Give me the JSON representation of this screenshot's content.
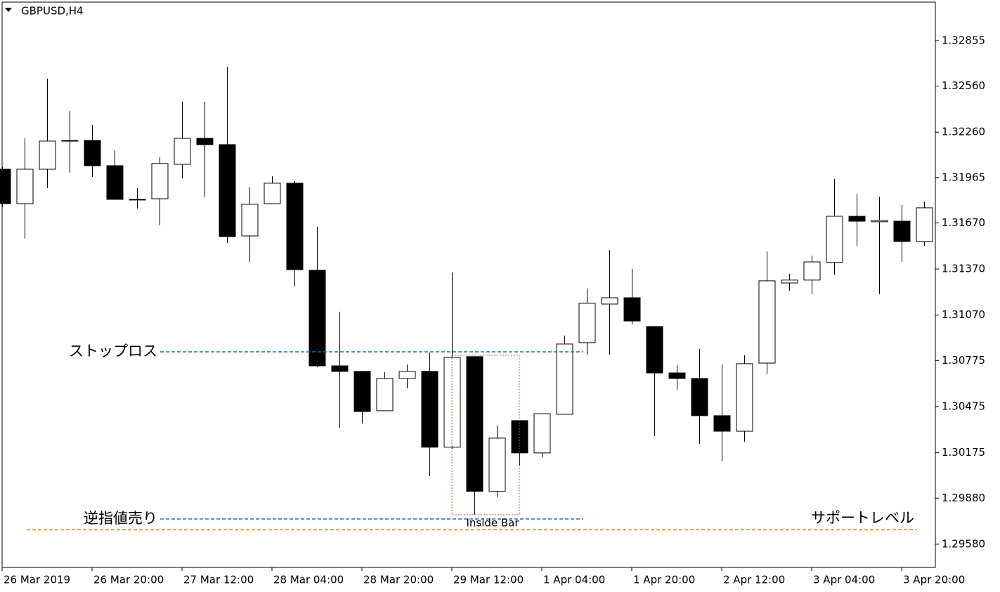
{
  "chart_data": {
    "type": "candlestick",
    "title": "GBPUSD,H4",
    "categories": [
      "26 Mar 2019",
      null,
      null,
      null,
      "26 Mar 20:00",
      null,
      null,
      null,
      "27 Mar 12:00",
      null,
      null,
      null,
      "28 Mar 04:00",
      null,
      null,
      null,
      "28 Mar 20:00",
      null,
      null,
      null,
      "29 Mar 12:00",
      null,
      null,
      null,
      "1 Apr 04:00",
      null,
      null,
      null,
      "1 Apr 20:00",
      null,
      null,
      null,
      "2 Apr 12:00",
      null,
      null,
      null,
      "3 Apr 04:00",
      null,
      null,
      null,
      "3 Apr 20:00",
      null
    ],
    "open": [
      1.32019,
      1.31795,
      1.32019,
      1.32206,
      1.32206,
      1.32042,
      1.31823,
      1.31827,
      1.32051,
      1.3222,
      1.32179,
      1.31585,
      1.31795,
      1.31928,
      1.31362,
      1.3074,
      1.30704,
      1.30448,
      1.30658,
      1.30704,
      1.30211,
      1.308,
      1.29924,
      1.30384,
      1.30174,
      1.30425,
      1.30891,
      1.31142,
      1.31183,
      1.30996,
      1.30694,
      1.30658,
      1.30416,
      1.30315,
      1.30758,
      1.31279,
      1.31298,
      1.31412,
      1.31713,
      1.31677,
      1.31681,
      1.31549
    ],
    "high": [
      1.32033,
      1.3222,
      1.32608,
      1.32398,
      1.32307,
      1.32142,
      1.31896,
      1.32097,
      1.32458,
      1.32458,
      1.32686,
      1.31901,
      1.31974,
      1.31942,
      1.31645,
      1.31092,
      1.30704,
      1.307,
      1.30749,
      1.30827,
      1.31348,
      1.308,
      1.30352,
      1.30384,
      1.30429,
      1.30937,
      1.31243,
      1.31494,
      1.31371,
      1.30996,
      1.30744,
      1.3085,
      1.30749,
      1.30809,
      1.31485,
      1.31339,
      1.31457,
      1.31956,
      1.31859,
      1.31841,
      1.31787,
      1.31809
    ],
    "low": [
      1.31772,
      1.31567,
      1.31896,
      1.31997,
      1.31969,
      1.31823,
      1.31763,
      1.31654,
      1.3196,
      1.31841,
      1.3154,
      1.31416,
      1.31795,
      1.31256,
      1.30731,
      1.30338,
      1.30365,
      1.30448,
      1.30594,
      1.30023,
      1.30198,
      1.29772,
      1.29887,
      1.30091,
      1.30146,
      1.30425,
      1.30813,
      1.30813,
      1.3101,
      1.30283,
      1.30585,
      1.30233,
      1.30119,
      1.30247,
      1.30687,
      1.31229,
      1.31206,
      1.31334,
      1.31521,
      1.31206,
      1.31416,
      1.31521
    ],
    "close": [
      1.31795,
      1.32019,
      1.32202,
      1.32202,
      1.32042,
      1.31823,
      1.31823,
      1.32056,
      1.3222,
      1.32179,
      1.31581,
      1.31791,
      1.31928,
      1.31366,
      1.3074,
      1.30704,
      1.30443,
      1.30658,
      1.30704,
      1.30211,
      1.30795,
      1.29924,
      1.3027,
      1.30174,
      1.30429,
      1.30882,
      1.31147,
      1.31183,
      1.31032,
      1.30694,
      1.30658,
      1.30416,
      1.30315,
      1.30754,
      1.31293,
      1.31298,
      1.31416,
      1.31713,
      1.31681,
      1.31686,
      1.31549,
      1.31768
    ],
    "up_color": "#ffffff",
    "down_color": "#000000",
    "ylim": [
      1.29429,
      1.33106
    ],
    "yticks": [
      1.32855,
      {
        "value": 1.3256,
        "label": "1.32560"
      },
      {
        "value": 1.3226,
        "label": "1.32260"
      },
      1.31965,
      {
        "value": 1.3167,
        "label": "1.31670"
      },
      {
        "value": 1.3137,
        "label": "1.31370"
      },
      {
        "value": 1.3107,
        "label": "1.31070"
      },
      1.30775,
      1.30475,
      1.30175,
      {
        "value": 1.2988,
        "label": "1.29880"
      },
      {
        "value": 1.2958,
        "label": "1.29580"
      }
    ],
    "annotations": [
      {
        "text": "ストップロス",
        "value": 1.30831,
        "color": "#1a6fc4"
      },
      {
        "text": "逆指値売り",
        "value": 1.29744,
        "color": "#1a6fc4"
      },
      {
        "text": "サポートレベル",
        "value": 1.29674,
        "color": "#e07b20"
      }
    ],
    "highlight": {
      "text": "Inside Bar",
      "color": "#e8502a"
    }
  }
}
